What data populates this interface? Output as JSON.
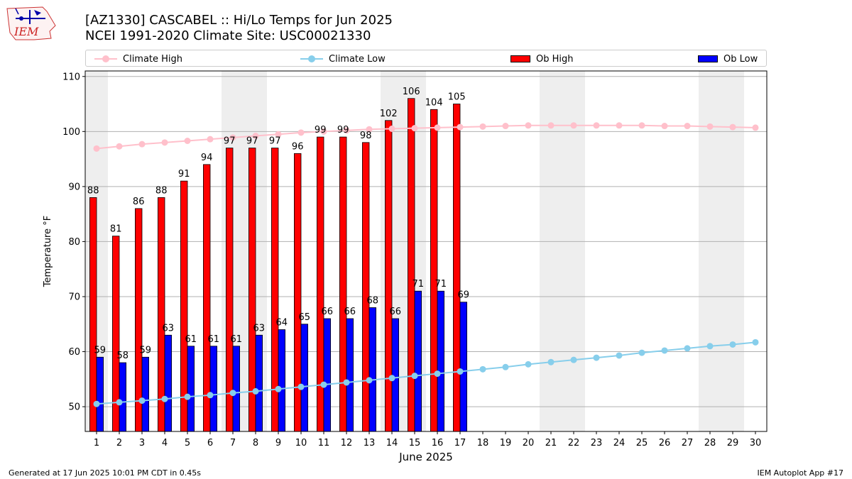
{
  "logo": {
    "text": "IEM"
  },
  "title": {
    "line1": "[AZ1330] CASCABEL :: Hi/Lo Temps for Jun 2025",
    "line2": "NCEI 1991-2020 Climate Site: USC00021330"
  },
  "legend": [
    {
      "label": "Climate High",
      "kind": "line",
      "color": "#ffc0cb"
    },
    {
      "label": "Climate Low",
      "kind": "line",
      "color": "#87ceeb"
    },
    {
      "label": "Ob High",
      "kind": "bar",
      "color": "#ff0000"
    },
    {
      "label": "Ob Low",
      "kind": "bar",
      "color": "#0000ff"
    }
  ],
  "chart_data": {
    "type": "bar",
    "xlabel": "June 2025",
    "ylabel": "Temperature °F",
    "xlim": [
      0.5,
      30.5
    ],
    "ylim": [
      45.5,
      111
    ],
    "yticks": [
      50,
      60,
      70,
      80,
      90,
      100,
      110
    ],
    "categories": [
      1,
      2,
      3,
      4,
      5,
      6,
      7,
      8,
      9,
      10,
      11,
      12,
      13,
      14,
      15,
      16,
      17,
      18,
      19,
      20,
      21,
      22,
      23,
      24,
      25,
      26,
      27,
      28,
      29,
      30
    ],
    "weekend_shading": [
      [
        1,
        1
      ],
      [
        7,
        8
      ],
      [
        14,
        15
      ],
      [
        21,
        22
      ],
      [
        28,
        29
      ]
    ],
    "grid": "horizontal",
    "series": [
      {
        "name": "Ob High",
        "kind": "bar",
        "color": "#ff0000",
        "x": [
          1,
          2,
          3,
          4,
          5,
          6,
          7,
          8,
          9,
          10,
          11,
          12,
          13,
          14,
          15,
          16,
          17
        ],
        "values": [
          88,
          81,
          86,
          88,
          91,
          94,
          97,
          97,
          97,
          96,
          99,
          99,
          98,
          102,
          106,
          104,
          105
        ]
      },
      {
        "name": "Ob Low",
        "kind": "bar",
        "color": "#0000ff",
        "x": [
          1,
          2,
          3,
          4,
          5,
          6,
          7,
          8,
          9,
          10,
          11,
          12,
          13,
          14,
          15,
          16,
          17
        ],
        "values": [
          59,
          58,
          59,
          63,
          61,
          61,
          61,
          63,
          64,
          65,
          66,
          66,
          68,
          66,
          71,
          71,
          69
        ]
      },
      {
        "name": "Climate High",
        "kind": "line",
        "color": "#ffc0cb",
        "x": [
          1,
          2,
          3,
          4,
          5,
          6,
          7,
          8,
          9,
          10,
          11,
          12,
          13,
          14,
          15,
          16,
          17,
          18,
          19,
          20,
          21,
          22,
          23,
          24,
          25,
          26,
          27,
          28,
          29,
          30
        ],
        "values": [
          96.9,
          97.3,
          97.7,
          98.0,
          98.3,
          98.6,
          98.9,
          99.2,
          99.5,
          99.8,
          100.0,
          100.2,
          100.4,
          100.5,
          100.6,
          100.7,
          100.8,
          100.9,
          101.0,
          101.1,
          101.1,
          101.1,
          101.1,
          101.1,
          101.1,
          101.0,
          101.0,
          100.9,
          100.8,
          100.7
        ]
      },
      {
        "name": "Climate Low",
        "kind": "line",
        "color": "#87ceeb",
        "x": [
          1,
          2,
          3,
          4,
          5,
          6,
          7,
          8,
          9,
          10,
          11,
          12,
          13,
          14,
          15,
          16,
          17,
          18,
          19,
          20,
          21,
          22,
          23,
          24,
          25,
          26,
          27,
          28,
          29,
          30
        ],
        "values": [
          50.5,
          50.8,
          51.1,
          51.4,
          51.8,
          52.1,
          52.5,
          52.8,
          53.2,
          53.6,
          54.0,
          54.4,
          54.8,
          55.2,
          55.6,
          56.0,
          56.4,
          56.8,
          57.2,
          57.7,
          58.1,
          58.5,
          58.9,
          59.3,
          59.8,
          60.2,
          60.6,
          61.0,
          61.3,
          61.7
        ]
      }
    ]
  },
  "footer": {
    "left": "Generated at 17 Jun 2025 10:01 PM CDT in 0.45s",
    "right": "IEM Autoplot App #17"
  }
}
